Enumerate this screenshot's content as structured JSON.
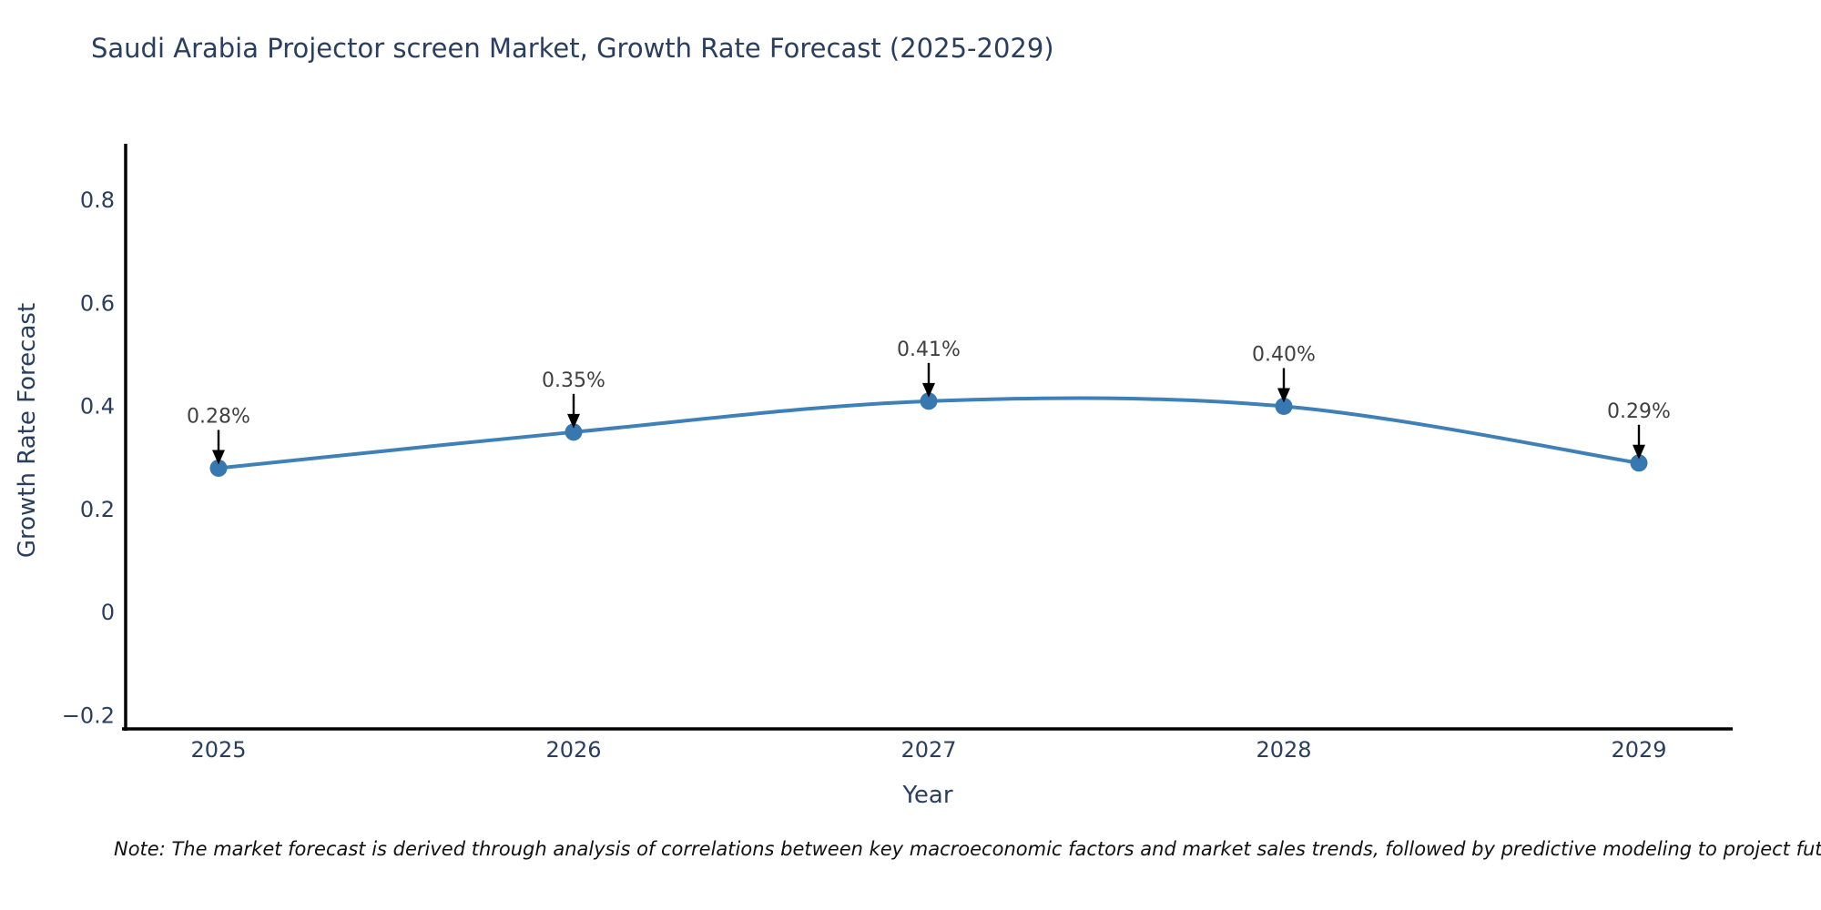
{
  "title": "Saudi Arabia Projector screen Market, Growth Rate Forecast (2025-2029)",
  "note": "Note: The market forecast is derived through analysis of correlations between key macroeconomic factors and market sales trends, followed by predictive modeling to project future sa",
  "chart_data": {
    "type": "line",
    "title": "Saudi Arabia Projector screen Market, Growth Rate Forecast (2025-2029)",
    "xlabel": "Year",
    "ylabel": "Growth Rate Forecast",
    "x": [
      2025,
      2026,
      2027,
      2028,
      2029
    ],
    "series": [
      {
        "name": "Growth Rate Forecast",
        "values": [
          0.28,
          0.35,
          0.41,
          0.4,
          0.29
        ],
        "point_labels": [
          "0.28%",
          "0.35%",
          "0.41%",
          "0.40%",
          "0.29%"
        ]
      }
    ],
    "line_shape": "spline",
    "markers": true,
    "grid": false,
    "legend_position": "none",
    "xtick_labels": [
      "2025",
      "2026",
      "2027",
      "2028",
      "2029"
    ],
    "yticks": [
      -0.2,
      0,
      0.2,
      0.4,
      0.6,
      0.8
    ],
    "ytick_labels": [
      "−0.2",
      "0",
      "0.2",
      "0.4",
      "0.6",
      "0.8"
    ],
    "ylim": [
      -0.226,
      0.906
    ],
    "colors": {
      "line": "#4080b8",
      "marker": "#3878b0",
      "axis": "#000000",
      "tick_text": "#2a3f5f",
      "axis_title_text": "#2a3f5f",
      "annotation_text": "#404040",
      "annotation_arrow": "#000000"
    }
  }
}
